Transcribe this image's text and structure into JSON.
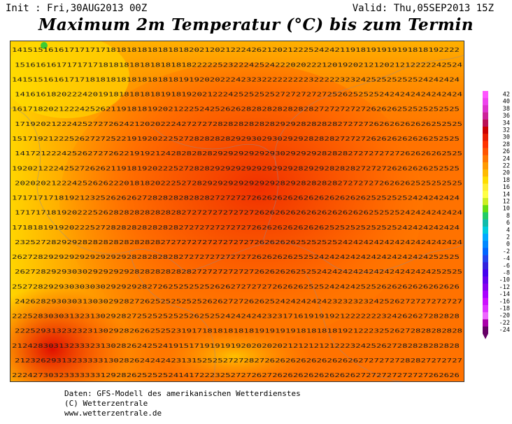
{
  "header": {
    "init": "Init : Fri,30AUG2013 00Z",
    "valid": "Valid: Thu,05SEP2013 15Z",
    "title": "Maximum 2m Temperatur (°C) bis zum Termin"
  },
  "legend": {
    "labels": [
      "42",
      "40",
      "38",
      "36",
      "34",
      "32",
      "30",
      "28",
      "26",
      "24",
      "22",
      "20",
      "18",
      "16",
      "14",
      "12",
      "10",
      "8",
      "6",
      "4",
      "2",
      "0",
      "-2",
      "-4",
      "-6",
      "-8",
      "-10",
      "-12",
      "-14",
      "-16",
      "-18",
      "-20",
      "-22",
      "-24"
    ],
    "colors": [
      "#ff55ff",
      "#ee44ee",
      "#dd33cc",
      "#cc2299",
      "#bb1155",
      "#cc0000",
      "#e81d00",
      "#ff3300",
      "#ff5500",
      "#ff7700",
      "#ff9900",
      "#ffbb00",
      "#ffdd00",
      "#ffee33",
      "#ffff44",
      "#ccee22",
      "#66dd11",
      "#22cc66",
      "#11bbaa",
      "#00ccdd",
      "#00aaff",
      "#0088ff",
      "#0066ff",
      "#2244ee",
      "#3322dd",
      "#4400ee",
      "#6600ee",
      "#8800ee",
      "#aa00ff",
      "#cc11ff",
      "#dd33ff",
      "#ee66ff",
      "#aa00aa",
      "#660066"
    ]
  },
  "footer": {
    "line1": "Daten: GFS-Modell des amerikanischen Wetterdienstes",
    "line2": "(C) Wetterzentrale",
    "line3": "www.wetterzentrale.de"
  },
  "map": {
    "color_low": "#ffe000",
    "color_mid": "#ff8a00",
    "color_high": "#f03000",
    "number_rows": [
      "14151516161717171718181818181818182021202122242621202122252424211918191919191818192222",
      "15161616171717171818181818181818182222252322242524222020222120192021212021212222242524",
      "14151516161717181818181818181818191920202224232322222222232222232324252525252524242424",
      "14161618202224201918181818181918192021222425252525272727272725262525252424242424242424",
      "16171820212224252621191818192021222524252626282828282828282727272727262626252525252525",
      "17192021222425272726242120202224272727282828282828292928282828272727262626262626252525",
      "15171921222526272725221919202225272828282829293029302929282828272727262626262626252525",
      "14172122242526272726221919212428282828292929292929302929292828282727272727262626262525",
      "19202122242527262621191819202225272828292929292929292928292928282827272726262626252525",
      "20202021222425262622201818202225272829292929292929282928282828272727272626262525252525",
      "17171717181921232526262627282828282828272727272626262626262626262626252525252424242424",
      "17171718192022252628282828282828272727272727272626262626262626262626252525242424242424",
      "17181819192022252728282828282828272727272727272626262626262625252525252525242424242424",
      "23252728292928282828282828282727272727272727272626262625252525242424242424242424242424",
      "26272829292929292929292828282828272727272727272626262625252424242424242424242424252525",
      "26272829293030292929292828282828282727272727272626262625252424242424242424242424252525",
      "25272829293030303029292928272625252525262627272727262626252524242425252626262626262626",
      "24262829303031303029282726252525252526262727262625242424242423232323242526272727272727",
      "22252830303132313029282725252525252625252424242423231716191919212222222324262627282828",
      "22252931323232313029282626252523191718181818181919191918181818192122232526272828282828",
      "21242830313233323130282624252419151719191919202020202121212121222324252627282828282828",
      "21232629313233333130282624242423131525252727282726262626262626262627272727282827272727",
      "22242730323333333129282625252524141722232527272627262626262626262627272727272727262626"
    ]
  }
}
